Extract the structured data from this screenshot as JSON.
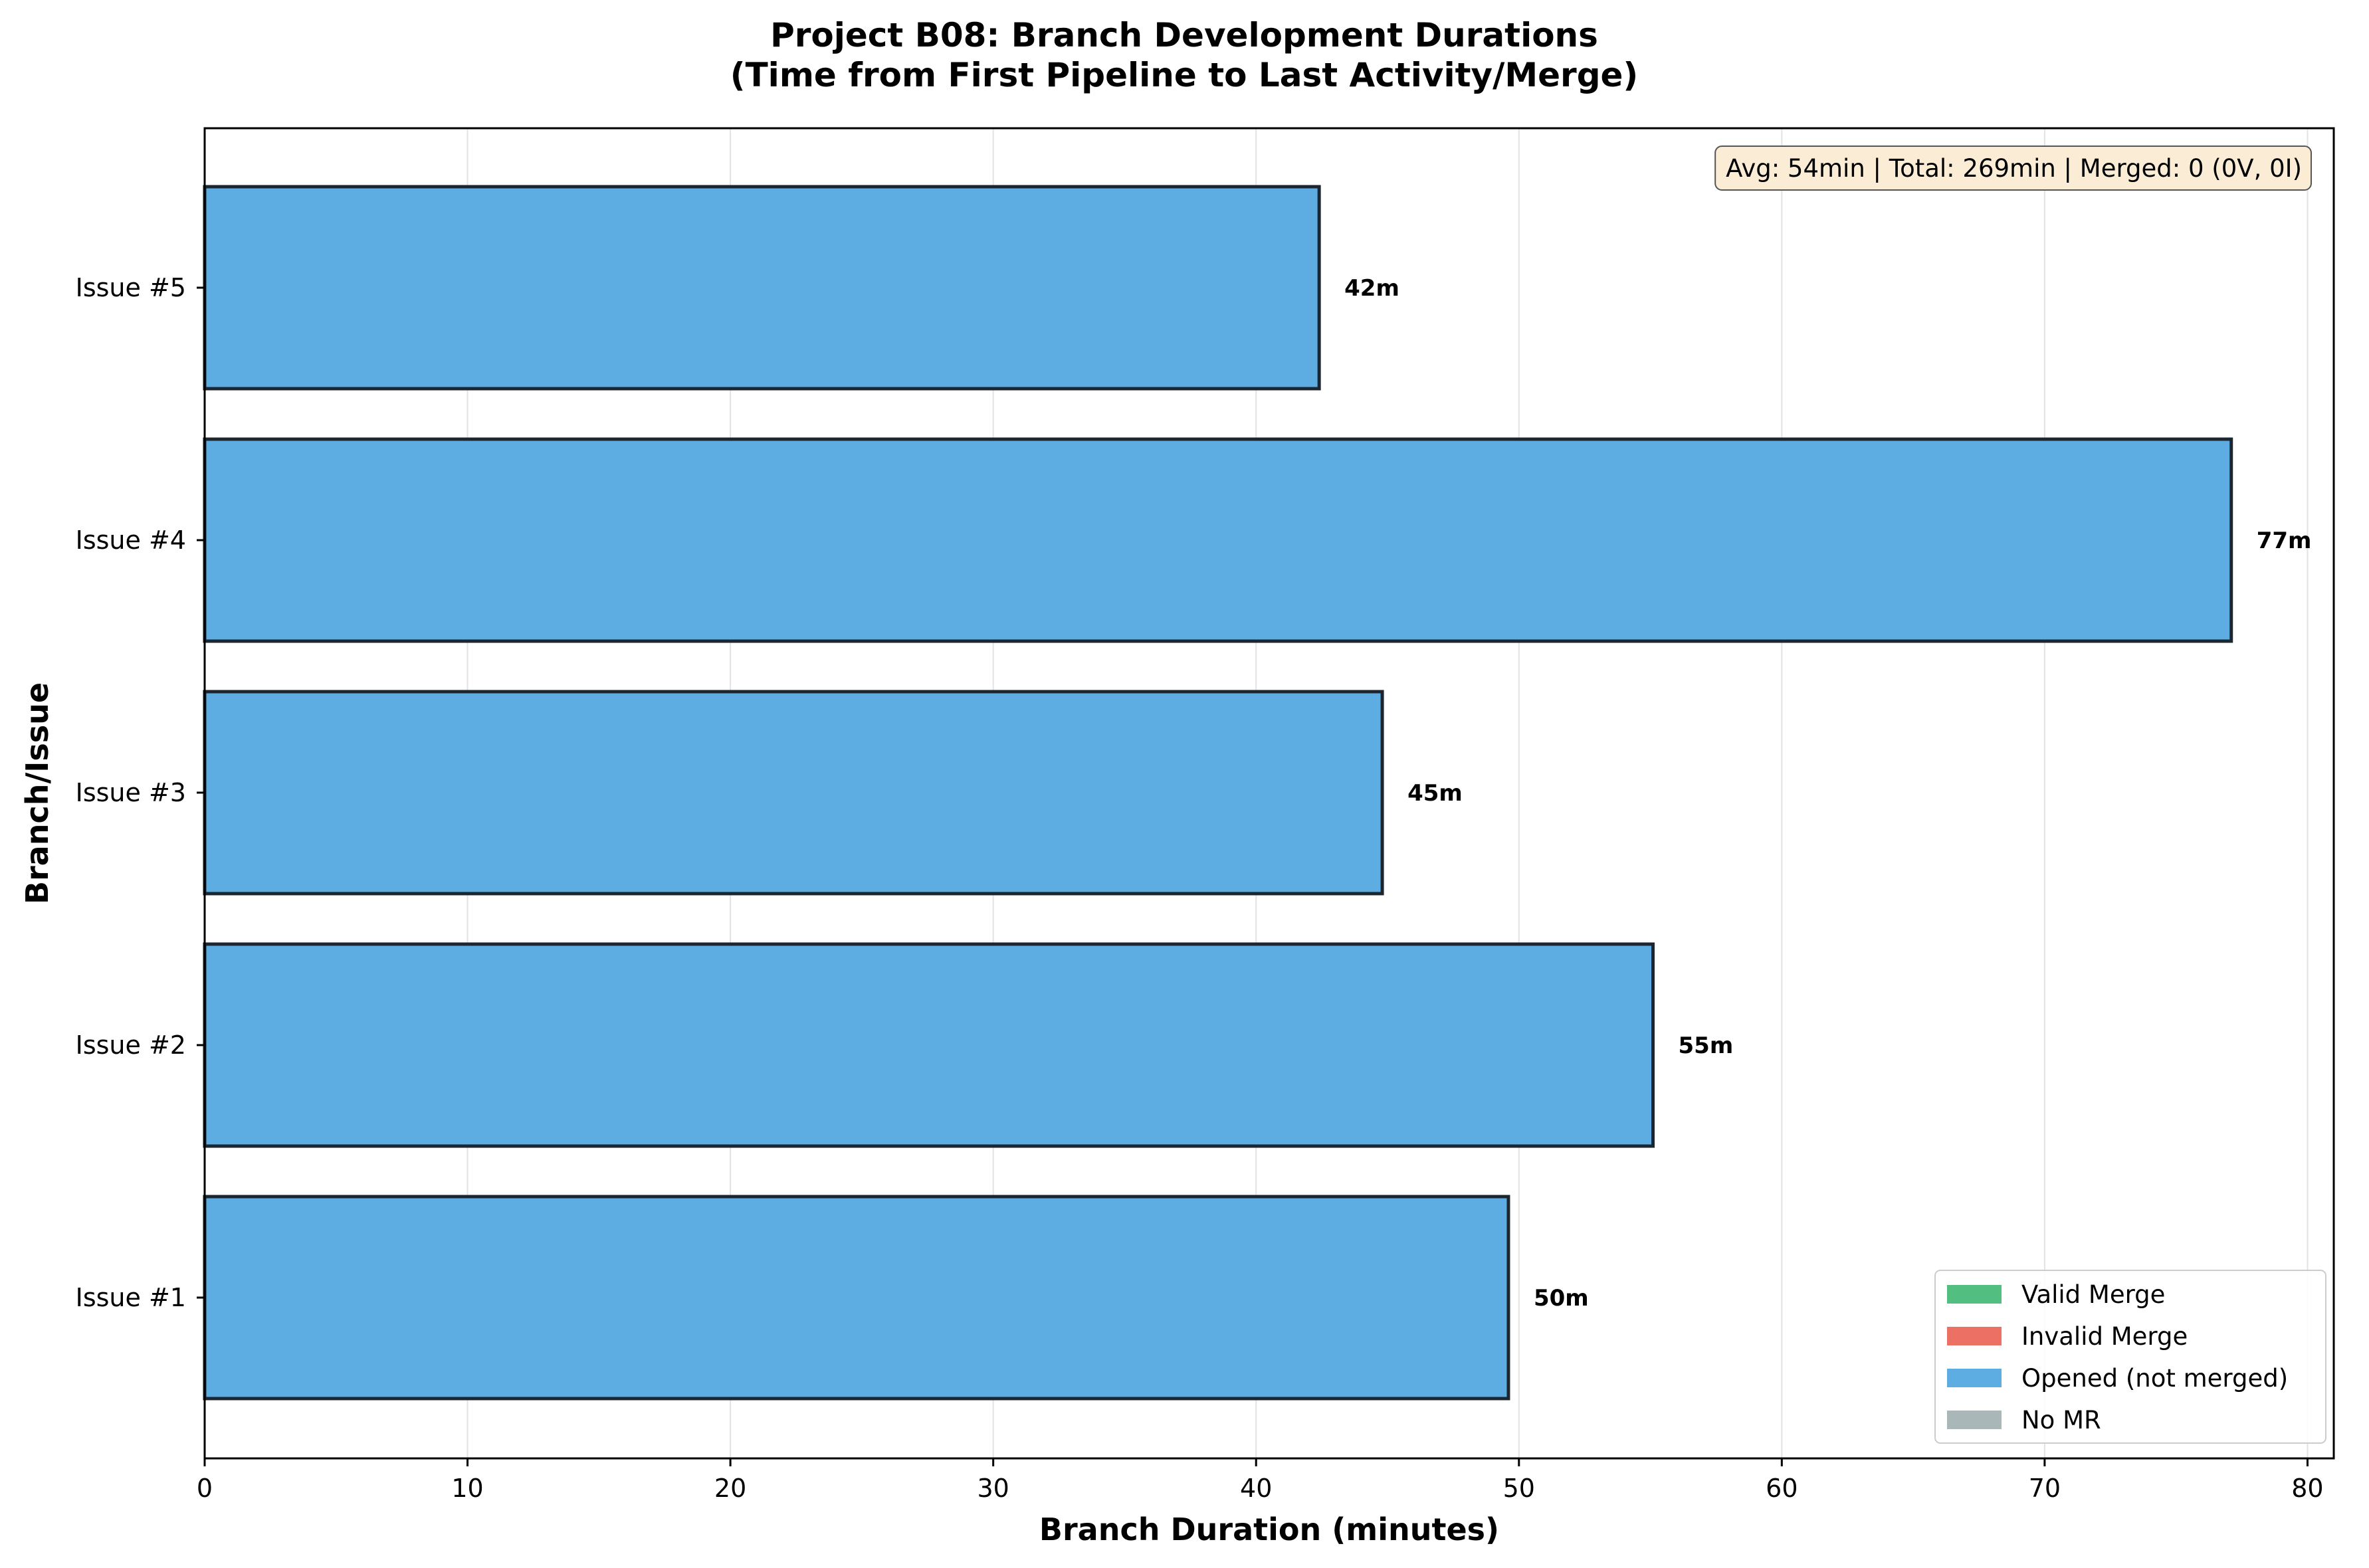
{
  "chart_data": {
    "type": "bar",
    "orientation": "horizontal",
    "title": "Project B08: Branch Development Durations",
    "subtitle": "(Time from First Pipeline to Last Activity/Merge)",
    "xlabel": "Branch Duration (minutes)",
    "ylabel": "Branch/Issue",
    "xlim": [
      0,
      81
    ],
    "x_ticks": [
      0,
      10,
      20,
      30,
      40,
      50,
      60,
      70,
      80
    ],
    "grid": "x",
    "categories": [
      "Issue #1",
      "Issue #2",
      "Issue #3",
      "Issue #4",
      "Issue #5"
    ],
    "values": [
      49.6,
      55.1,
      44.8,
      77.1,
      42.4
    ],
    "data_labels": [
      "50m",
      "55m",
      "45m",
      "77m",
      "42m"
    ],
    "bar_color": "#5dade2",
    "bar_edge_color": "#1b2631",
    "stats_text": "Avg: 54min | Total: 269min | Merged: 0 (0V, 0I)",
    "legend_position": "bottom-right",
    "legend": [
      {
        "label": "Valid Merge",
        "color": "#52be80"
      },
      {
        "label": "Invalid Merge",
        "color": "#ec7063"
      },
      {
        "label": "Opened (not merged)",
        "color": "#5dade2"
      },
      {
        "label": "No MR",
        "color": "#aab7b8"
      }
    ]
  }
}
